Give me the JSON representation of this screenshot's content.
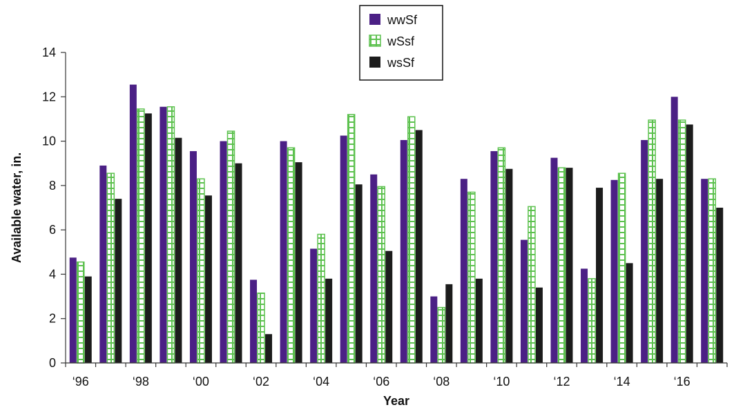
{
  "chart_data": {
    "type": "bar",
    "title": "",
    "xlabel": "Year",
    "ylabel": "Available water, in.",
    "ylim": [
      0,
      14
    ],
    "yticks": [
      0,
      2,
      4,
      6,
      8,
      10,
      12,
      14
    ],
    "grid": false,
    "legend_position": "top-center",
    "categories": [
      "1996",
      "1997",
      "1998",
      "1999",
      "2000",
      "2001",
      "2002",
      "2003",
      "2004",
      "2005",
      "2006",
      "2007",
      "2008",
      "2009",
      "2010",
      "2011",
      "2012",
      "2013",
      "2014",
      "2015",
      "2016",
      "2017"
    ],
    "xtick_labels": [
      {
        "category": "1996",
        "label": "‘96"
      },
      {
        "category": "1998",
        "label": "‘98"
      },
      {
        "category": "2000",
        "label": "‘00"
      },
      {
        "category": "2002",
        "label": "‘02"
      },
      {
        "category": "2004",
        "label": "‘04"
      },
      {
        "category": "2006",
        "label": "‘06"
      },
      {
        "category": "2008",
        "label": "‘08"
      },
      {
        "category": "2010",
        "label": "‘10"
      },
      {
        "category": "2012",
        "label": "‘12"
      },
      {
        "category": "2014",
        "label": "‘14"
      },
      {
        "category": "2016",
        "label": "‘16"
      }
    ],
    "series": [
      {
        "name": "wwSf",
        "color": "#4b2085",
        "pattern": "solid",
        "values": [
          4.75,
          8.9,
          12.55,
          11.55,
          9.55,
          10.0,
          3.75,
          10.0,
          5.15,
          10.25,
          8.5,
          10.05,
          3.0,
          8.3,
          9.55,
          5.55,
          9.25,
          4.25,
          8.25,
          10.05,
          12.0,
          8.3
        ]
      },
      {
        "name": "wSsf",
        "color": "#5cc14e",
        "pattern": "hatched",
        "values": [
          4.55,
          8.55,
          11.45,
          11.55,
          8.3,
          10.45,
          3.15,
          9.7,
          5.8,
          11.2,
          7.95,
          11.1,
          2.5,
          7.7,
          9.7,
          7.05,
          8.8,
          3.8,
          8.55,
          10.95,
          10.95,
          8.3
        ]
      },
      {
        "name": "wsSf",
        "color": "#1c1c1c",
        "pattern": "solid",
        "values": [
          3.9,
          7.4,
          11.25,
          10.15,
          7.55,
          9.0,
          1.3,
          9.05,
          3.8,
          8.05,
          5.05,
          10.5,
          3.55,
          3.8,
          8.75,
          3.4,
          8.8,
          7.9,
          4.5,
          8.3,
          10.75,
          7.0
        ]
      }
    ]
  }
}
